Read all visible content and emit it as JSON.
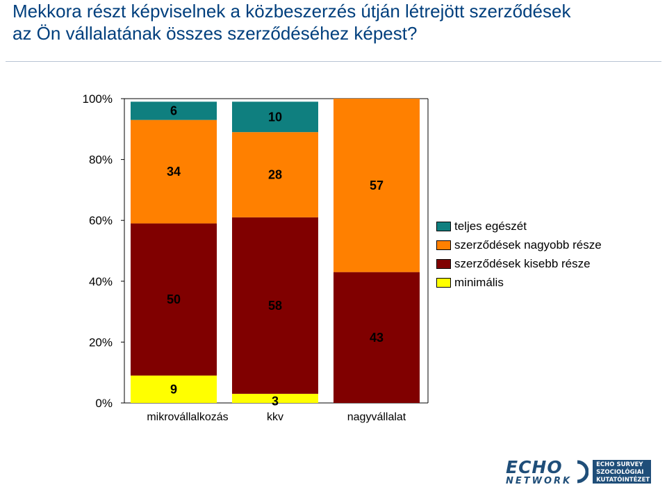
{
  "title": {
    "line1": "Mekkora részt képviselnek a közbeszerzés útján létrejött szerződések",
    "line2": "az Ön vállalatának összes szerződéséhez képest?"
  },
  "chart_data": {
    "type": "bar",
    "stacked": true,
    "categories": [
      "mikrovállalkozás",
      "kkv",
      "nagyvállalat"
    ],
    "y_ticks": [
      "0%",
      "20%",
      "40%",
      "60%",
      "80%",
      "100%"
    ],
    "ylim": [
      0,
      100
    ],
    "legend_position": "right",
    "series": [
      {
        "name": "minimális",
        "color": "#ffff00",
        "values": [
          9,
          3,
          0
        ],
        "labels": [
          "9",
          "3",
          ""
        ]
      },
      {
        "name": "szerződések kisebb része",
        "color": "#800000",
        "values": [
          50,
          58,
          43
        ],
        "labels": [
          "50",
          "58",
          "43"
        ]
      },
      {
        "name": "szerződések nagyobb része",
        "color": "#ff8000",
        "values": [
          34,
          28,
          57
        ],
        "labels": [
          "34",
          "28",
          "57"
        ]
      },
      {
        "name": "teljes egészét",
        "color": "#0f7f7f",
        "values": [
          6,
          10,
          0
        ],
        "labels": [
          "6",
          "10",
          ""
        ]
      }
    ]
  },
  "logo": {
    "name_top": "ECHO",
    "name_bottom": "NETWORK",
    "box_lines": [
      "ECHO SURVEY",
      "SZOCIOLÓGIAI",
      "KUTATÓINTÉZET"
    ],
    "color": "#1f4e79"
  }
}
